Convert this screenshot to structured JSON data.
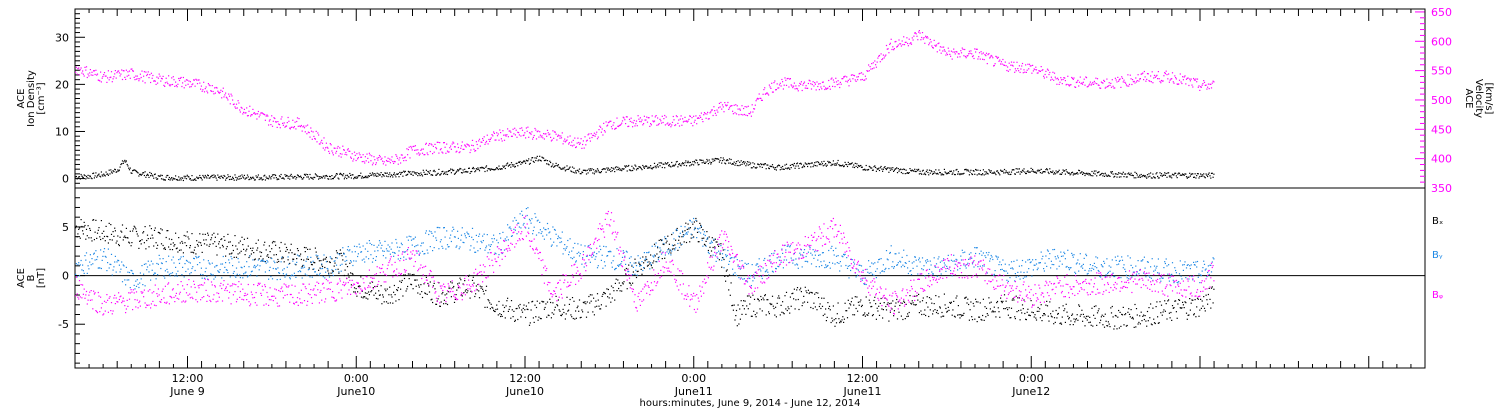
{
  "colors": {
    "black": "#000000",
    "magenta": "#ff00ff",
    "blue": "#1e88e5",
    "axis": "#000000"
  },
  "footer_text": "hours:minutes,  June  9, 2014 - June 12, 2014",
  "chart_data": [
    {
      "type": "scatter",
      "panel": "top",
      "ylabel_lines": [
        "ACE",
        "Ion Density",
        "[cm⁻³]"
      ],
      "ylabel_right_lines": [
        "ACE",
        "Velocity",
        "[km/s]"
      ],
      "ylim": [
        -2,
        36
      ],
      "yticks": [
        0,
        10,
        20,
        30
      ],
      "ylim_right": [
        350,
        655
      ],
      "yticks_right": [
        350,
        400,
        450,
        500,
        550,
        600,
        650
      ],
      "series": [
        {
          "name": "Ion Density",
          "axis": "left",
          "color_key": "black",
          "x": [
            0,
            1,
            2,
            3,
            3.5,
            4,
            5,
            6,
            8,
            10,
            12,
            14,
            16,
            18,
            20,
            22,
            24,
            26,
            28,
            30,
            32,
            33,
            34,
            36,
            38,
            40,
            42,
            44,
            46,
            48,
            50,
            52,
            54,
            56,
            58,
            60,
            62,
            64,
            66,
            68,
            70,
            72,
            74,
            76,
            78,
            80,
            81
          ],
          "y": [
            0.5,
            0.6,
            1.0,
            2.0,
            4.0,
            1.5,
            1.0,
            0.4,
            0.3,
            0.3,
            0.4,
            0.4,
            0.5,
            0.6,
            0.7,
            1.0,
            1.2,
            1.5,
            1.8,
            2.5,
            3.5,
            4.5,
            3.0,
            1.5,
            2.0,
            2.5,
            3.0,
            3.5,
            4.0,
            3.0,
            2.5,
            3.0,
            3.5,
            2.5,
            2.0,
            1.5,
            1.5,
            1.5,
            1.5,
            1.8,
            1.5,
            1.2,
            1.0,
            0.8,
            0.8,
            0.8,
            0.7
          ]
        },
        {
          "name": "Velocity",
          "axis": "right",
          "color_key": "magenta",
          "x": [
            0,
            2,
            4,
            6,
            8,
            10,
            12,
            14,
            16,
            18,
            20,
            22,
            23,
            24,
            26,
            28,
            30,
            32,
            34,
            36,
            38,
            40,
            42,
            44,
            46,
            48,
            49,
            50,
            52,
            54,
            56,
            58,
            59,
            60,
            62,
            64,
            66,
            68,
            70,
            72,
            74,
            76,
            78,
            80,
            81
          ],
          "y": [
            555,
            540,
            545,
            535,
            530,
            520,
            485,
            465,
            460,
            420,
            405,
            395,
            400,
            415,
            420,
            420,
            440,
            445,
            440,
            425,
            460,
            465,
            465,
            465,
            490,
            480,
            515,
            530,
            525,
            530,
            540,
            595,
            600,
            612,
            580,
            580,
            560,
            555,
            535,
            530,
            530,
            540,
            540,
            525,
            525
          ]
        }
      ]
    },
    {
      "type": "scatter",
      "panel": "bottom",
      "ylabel_lines": [
        "ACE",
        "B",
        "[nT]"
      ],
      "ylim": [
        -9.5,
        9
      ],
      "yticks": [
        -5,
        0,
        5
      ],
      "series": [
        {
          "name": "Bₓ",
          "color_key": "black",
          "x": [
            0,
            2,
            4,
            6,
            8,
            10,
            12,
            14,
            16,
            18,
            19,
            20,
            22,
            24,
            26,
            28,
            30,
            32,
            34,
            36,
            38,
            40,
            42,
            44,
            46,
            47,
            48,
            50,
            52,
            54,
            56,
            58,
            60,
            62,
            64,
            66,
            68,
            70,
            72,
            74,
            76,
            78,
            80,
            81
          ],
          "y": [
            5,
            4.5,
            4,
            4,
            3.5,
            3.2,
            3,
            2.5,
            2,
            1.5,
            1.5,
            -1,
            -2,
            -0.5,
            -2,
            -1,
            -3,
            -4,
            -3,
            -3.5,
            -2,
            1,
            3,
            5,
            2,
            -4,
            -3,
            -3,
            -2,
            -4,
            -3,
            -3.5,
            -3,
            -3,
            -3.5,
            -3,
            -3.5,
            -4,
            -4.2,
            -4.3,
            -4,
            -3.5,
            -3,
            -2
          ]
        },
        {
          "name": "Bᵧ",
          "color_key": "blue",
          "x": [
            0,
            2,
            4,
            6,
            8,
            10,
            12,
            14,
            16,
            18,
            20,
            22,
            24,
            26,
            28,
            30,
            32,
            34,
            36,
            38,
            40,
            42,
            44,
            46,
            48,
            50,
            52,
            54,
            56,
            58,
            60,
            62,
            64,
            66,
            68,
            70,
            72,
            74,
            76,
            78,
            80,
            81
          ],
          "y": [
            1,
            2,
            -0.5,
            1,
            1,
            0.8,
            1,
            0.8,
            1,
            1,
            2.5,
            2.5,
            3,
            4,
            3.8,
            3,
            6,
            4,
            2,
            2,
            1,
            3,
            5,
            2,
            0,
            2,
            2,
            2,
            0,
            2,
            1,
            1,
            2,
            0.5,
            1,
            2,
            1,
            1,
            0.8,
            0.5,
            0.3,
            1
          ]
        },
        {
          "name": "Bᵩ",
          "color_key": "magenta",
          "x": [
            0,
            2,
            4,
            6,
            8,
            10,
            12,
            14,
            16,
            18,
            20,
            22,
            24,
            26,
            28,
            30,
            32,
            34,
            36,
            38,
            40,
            42,
            44,
            46,
            48,
            50,
            52,
            54,
            56,
            58,
            60,
            62,
            64,
            66,
            68,
            70,
            72,
            74,
            76,
            78,
            80,
            81
          ],
          "y": [
            -1,
            -3,
            -2.5,
            -2,
            -1.5,
            -1.5,
            -1.8,
            -2,
            -2,
            -1.5,
            -1,
            0.5,
            2,
            -2,
            -1,
            2,
            5,
            -2,
            1,
            6,
            -3,
            2,
            -3,
            4,
            -1,
            2,
            3,
            5,
            0,
            -3,
            -1,
            1,
            1,
            -1,
            -2,
            -1,
            -1,
            -0.5,
            -0.5,
            -1,
            -1.2,
            0.5
          ]
        }
      ]
    }
  ],
  "x_axis": {
    "range_hours": [
      0,
      96
    ],
    "ticks": [
      {
        "hours": 8,
        "time": "12:00",
        "date": "June 9"
      },
      {
        "hours": 20,
        "time": "0:00",
        "date": "June10"
      },
      {
        "hours": 32,
        "time": "12:00",
        "date": "June10"
      },
      {
        "hours": 44,
        "time": "0:00",
        "date": "June11"
      },
      {
        "hours": 56,
        "time": "12:00",
        "date": "June11"
      },
      {
        "hours": 68,
        "time": "0:00",
        "date": "June12"
      }
    ]
  },
  "legend": [
    {
      "label": "Bₓ",
      "color_key": "black"
    },
    {
      "label": "Bᵧ",
      "color_key": "blue"
    },
    {
      "label": "Bᵩ",
      "color_key": "magenta"
    }
  ]
}
